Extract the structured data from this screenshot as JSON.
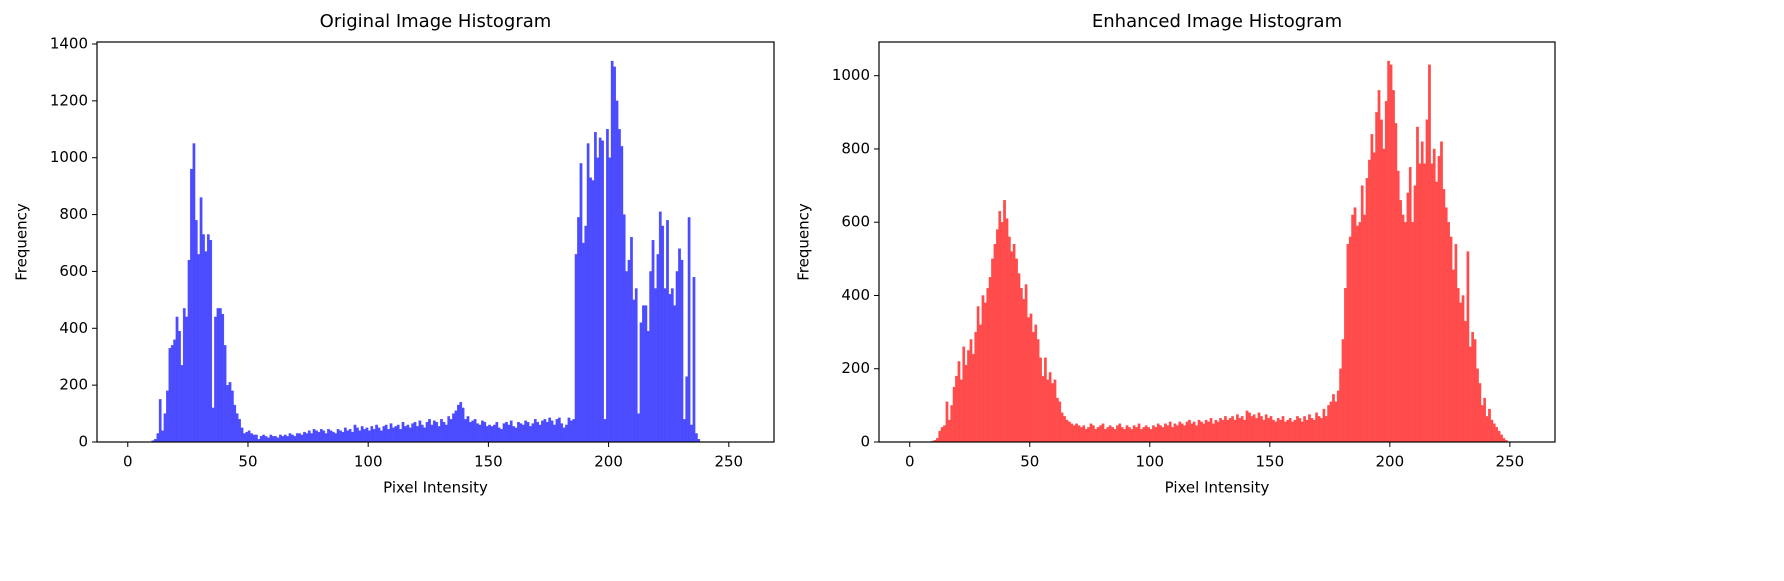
{
  "chart_data": [
    {
      "type": "histogram",
      "title": "Original Image Histogram",
      "xlabel": "Pixel Intensity",
      "ylabel": "Frequency",
      "color": "#4b4bff",
      "xlim": [
        -12.8,
        268.8
      ],
      "ylim": [
        0,
        1407
      ],
      "xticks": [
        0,
        50,
        100,
        150,
        200,
        250
      ],
      "yticks": [
        0,
        200,
        400,
        600,
        800,
        1000,
        1200,
        1400
      ],
      "bins": [
        0,
        1,
        2,
        3,
        4,
        5,
        6,
        7,
        8,
        9,
        10,
        11,
        12,
        13,
        14,
        15,
        16,
        17,
        18,
        19,
        20,
        21,
        22,
        23,
        24,
        25,
        26,
        27,
        28,
        29,
        30,
        31,
        32,
        33,
        34,
        35,
        36,
        37,
        38,
        39,
        40,
        41,
        42,
        43,
        44,
        45,
        46,
        47,
        48,
        49,
        50,
        51,
        52,
        53,
        54,
        55,
        56,
        57,
        58,
        59,
        60,
        61,
        62,
        63,
        64,
        65,
        66,
        67,
        68,
        69,
        70,
        71,
        72,
        73,
        74,
        75,
        76,
        77,
        78,
        79,
        80,
        81,
        82,
        83,
        84,
        85,
        86,
        87,
        88,
        89,
        90,
        91,
        92,
        93,
        94,
        95,
        96,
        97,
        98,
        99,
        100,
        101,
        102,
        103,
        104,
        105,
        106,
        107,
        108,
        109,
        110,
        111,
        112,
        113,
        114,
        115,
        116,
        117,
        118,
        119,
        120,
        121,
        122,
        123,
        124,
        125,
        126,
        127,
        128,
        129,
        130,
        131,
        132,
        133,
        134,
        135,
        136,
        137,
        138,
        139,
        140,
        141,
        142,
        143,
        144,
        145,
        146,
        147,
        148,
        149,
        150,
        151,
        152,
        153,
        154,
        155,
        156,
        157,
        158,
        159,
        160,
        161,
        162,
        163,
        164,
        165,
        166,
        167,
        168,
        169,
        170,
        171,
        172,
        173,
        174,
        175,
        176,
        177,
        178,
        179,
        180,
        181,
        182,
        183,
        184,
        185,
        186,
        187,
        188,
        189,
        190,
        191,
        192,
        193,
        194,
        195,
        196,
        197,
        198,
        199,
        200,
        201,
        202,
        203,
        204,
        205,
        206,
        207,
        208,
        209,
        210,
        211,
        212,
        213,
        214,
        215,
        216,
        217,
        218,
        219,
        220,
        221,
        222,
        223,
        224,
        225,
        226,
        227,
        228,
        229,
        230,
        231,
        232,
        233,
        234,
        235,
        236,
        237,
        238,
        239,
        240,
        241,
        242,
        243,
        244,
        245,
        246,
        247,
        248,
        249,
        250,
        251,
        252,
        253,
        254,
        255,
        256
      ],
      "values": [
        0,
        0,
        0,
        0,
        0,
        0,
        0,
        0,
        0,
        0,
        5,
        10,
        30,
        150,
        40,
        100,
        180,
        330,
        340,
        360,
        440,
        390,
        270,
        470,
        440,
        640,
        960,
        1050,
        780,
        660,
        860,
        730,
        670,
        730,
        710,
        120,
        440,
        470,
        470,
        450,
        340,
        200,
        210,
        180,
        130,
        100,
        80,
        50,
        30,
        35,
        40,
        30,
        25,
        25,
        10,
        20,
        25,
        20,
        15,
        25,
        20,
        20,
        15,
        25,
        20,
        25,
        20,
        30,
        25,
        20,
        30,
        30,
        25,
        35,
        30,
        40,
        30,
        45,
        40,
        35,
        45,
        40,
        30,
        45,
        40,
        35,
        30,
        45,
        40,
        35,
        50,
        40,
        45,
        35,
        60,
        50,
        40,
        55,
        45,
        50,
        40,
        55,
        45,
        60,
        50,
        40,
        55,
        60,
        45,
        65,
        50,
        55,
        60,
        45,
        70,
        55,
        60,
        50,
        65,
        70,
        55,
        75,
        60,
        50,
        70,
        80,
        60,
        75,
        70,
        55,
        80,
        70,
        60,
        90,
        80,
        100,
        110,
        130,
        140,
        120,
        80,
        90,
        70,
        75,
        80,
        65,
        60,
        75,
        70,
        55,
        60,
        55,
        60,
        70,
        50,
        45,
        65,
        70,
        60,
        75,
        55,
        50,
        70,
        65,
        60,
        75,
        70,
        55,
        65,
        80,
        70,
        60,
        75,
        80,
        70,
        85,
        75,
        60,
        80,
        85,
        65,
        50,
        60,
        85,
        75,
        80,
        660,
        790,
        980,
        700,
        760,
        1050,
        930,
        920,
        1090,
        1000,
        1070,
        1060,
        80,
        1100,
        1000,
        1340,
        1320,
        1200,
        1100,
        1040,
        800,
        600,
        640,
        720,
        500,
        540,
        100,
        420,
        480,
        480,
        390,
        600,
        710,
        540,
        660,
        810,
        760,
        540,
        780,
        520,
        540,
        480,
        600,
        680,
        640,
        80,
        230,
        790,
        60,
        580,
        30,
        10,
        0,
        0,
        0,
        0,
        0,
        0,
        0,
        0,
        0,
        0,
        0,
        0,
        0,
        0,
        0,
        0,
        0,
        0
      ]
    },
    {
      "type": "histogram",
      "title": "Enhanced Image Histogram",
      "xlabel": "Pixel Intensity",
      "ylabel": "Frequency",
      "color": "#ff4b4b",
      "xlim": [
        -12.8,
        268.8
      ],
      "ylim": [
        0,
        1092
      ],
      "xticks": [
        0,
        50,
        100,
        150,
        200,
        250
      ],
      "yticks": [
        0,
        200,
        400,
        600,
        800,
        1000
      ],
      "bins": [
        0,
        1,
        2,
        3,
        4,
        5,
        6,
        7,
        8,
        9,
        10,
        11,
        12,
        13,
        14,
        15,
        16,
        17,
        18,
        19,
        20,
        21,
        22,
        23,
        24,
        25,
        26,
        27,
        28,
        29,
        30,
        31,
        32,
        33,
        34,
        35,
        36,
        37,
        38,
        39,
        40,
        41,
        42,
        43,
        44,
        45,
        46,
        47,
        48,
        49,
        50,
        51,
        52,
        53,
        54,
        55,
        56,
        57,
        58,
        59,
        60,
        61,
        62,
        63,
        64,
        65,
        66,
        67,
        68,
        69,
        70,
        71,
        72,
        73,
        74,
        75,
        76,
        77,
        78,
        79,
        80,
        81,
        82,
        83,
        84,
        85,
        86,
        87,
        88,
        89,
        90,
        91,
        92,
        93,
        94,
        95,
        96,
        97,
        98,
        99,
        100,
        101,
        102,
        103,
        104,
        105,
        106,
        107,
        108,
        109,
        110,
        111,
        112,
        113,
        114,
        115,
        116,
        117,
        118,
        119,
        120,
        121,
        122,
        123,
        124,
        125,
        126,
        127,
        128,
        129,
        130,
        131,
        132,
        133,
        134,
        135,
        136,
        137,
        138,
        139,
        140,
        141,
        142,
        143,
        144,
        145,
        146,
        147,
        148,
        149,
        150,
        151,
        152,
        153,
        154,
        155,
        156,
        157,
        158,
        159,
        160,
        161,
        162,
        163,
        164,
        165,
        166,
        167,
        168,
        169,
        170,
        171,
        172,
        173,
        174,
        175,
        176,
        177,
        178,
        179,
        180,
        181,
        182,
        183,
        184,
        185,
        186,
        187,
        188,
        189,
        190,
        191,
        192,
        193,
        194,
        195,
        196,
        197,
        198,
        199,
        200,
        201,
        202,
        203,
        204,
        205,
        206,
        207,
        208,
        209,
        210,
        211,
        212,
        213,
        214,
        215,
        216,
        217,
        218,
        219,
        220,
        221,
        222,
        223,
        224,
        225,
        226,
        227,
        228,
        229,
        230,
        231,
        232,
        233,
        234,
        235,
        236,
        237,
        238,
        239,
        240,
        241,
        242,
        243,
        244,
        245,
        246,
        247,
        248,
        249,
        250,
        251,
        252,
        253,
        254,
        255,
        256
      ],
      "values": [
        0,
        0,
        0,
        0,
        0,
        0,
        0,
        0,
        0,
        2,
        5,
        10,
        30,
        40,
        45,
        110,
        60,
        100,
        150,
        180,
        220,
        170,
        260,
        210,
        250,
        280,
        240,
        300,
        370,
        320,
        400,
        380,
        420,
        450,
        500,
        540,
        580,
        630,
        600,
        660,
        610,
        560,
        520,
        540,
        500,
        460,
        420,
        390,
        430,
        340,
        350,
        300,
        320,
        280,
        230,
        180,
        230,
        170,
        190,
        160,
        170,
        120,
        110,
        80,
        70,
        60,
        55,
        50,
        45,
        50,
        45,
        40,
        45,
        35,
        40,
        50,
        45,
        35,
        40,
        45,
        50,
        35,
        40,
        45,
        40,
        35,
        45,
        50,
        40,
        35,
        45,
        40,
        35,
        45,
        40,
        50,
        35,
        40,
        45,
        40,
        35,
        45,
        40,
        50,
        45,
        40,
        50,
        45,
        55,
        40,
        50,
        45,
        55,
        50,
        45,
        55,
        60,
        50,
        55,
        45,
        60,
        55,
        50,
        60,
        55,
        65,
        50,
        60,
        55,
        65,
        60,
        70,
        60,
        65,
        70,
        60,
        75,
        65,
        70,
        60,
        85,
        80,
        70,
        75,
        65,
        80,
        70,
        60,
        75,
        65,
        70,
        60,
        55,
        65,
        60,
        70,
        55,
        60,
        65,
        55,
        60,
        70,
        65,
        55,
        70,
        60,
        75,
        65,
        60,
        80,
        70,
        65,
        90,
        70,
        100,
        110,
        130,
        110,
        140,
        200,
        280,
        420,
        540,
        560,
        620,
        640,
        590,
        600,
        700,
        620,
        720,
        770,
        840,
        790,
        900,
        960,
        880,
        800,
        930,
        1040,
        1030,
        960,
        870,
        740,
        660,
        620,
        600,
        680,
        750,
        600,
        700,
        860,
        760,
        820,
        760,
        880,
        1030,
        760,
        800,
        710,
        780,
        820,
        690,
        640,
        600,
        560,
        470,
        540,
        420,
        380,
        400,
        330,
        520,
        260,
        300,
        280,
        200,
        160,
        100,
        120,
        70,
        90,
        60,
        50,
        40,
        30,
        20,
        10,
        5,
        0,
        0,
        0,
        0,
        0,
        0,
        0
      ]
    }
  ]
}
